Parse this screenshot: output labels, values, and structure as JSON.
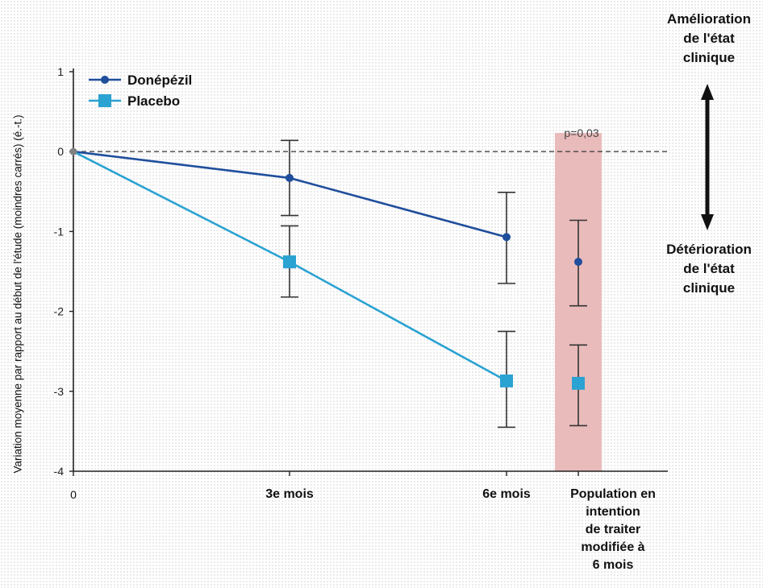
{
  "chart_data": {
    "type": "line",
    "ylabel": "Variation moyenne par rapport au début de l'étude (moindres carrés) (é.-t.)",
    "ylim": [
      -4,
      1
    ],
    "yticks": [
      "1",
      "0",
      "-1",
      "-2",
      "-3",
      "-4"
    ],
    "categories": [
      "0",
      "3e mois",
      "6e mois",
      "Population en intention de traiter modifiée à 6 mois"
    ],
    "category_lines": [
      [
        "0"
      ],
      [
        "3e mois"
      ],
      [
        "6e mois"
      ],
      [
        "Population en",
        "intention",
        "de traiter",
        "modifiée à",
        "6 mois"
      ]
    ],
    "reference_line": 0,
    "series": [
      {
        "name": "Donépézil",
        "color": "#1f4e9c",
        "marker": "circle",
        "values": [
          0,
          -0.33,
          -1.07,
          -1.38
        ],
        "error_low": [
          null,
          -0.8,
          -1.65,
          -1.93
        ],
        "error_high": [
          null,
          0.14,
          -0.51,
          -0.86
        ]
      },
      {
        "name": "Placebo",
        "color": "#2aa2d2",
        "marker": "square",
        "values": [
          0,
          -1.38,
          -2.87,
          -2.9
        ],
        "error_low": [
          null,
          -1.82,
          -3.45,
          -3.43
        ],
        "error_high": [
          null,
          -0.93,
          -2.25,
          -2.42
        ]
      }
    ],
    "connected_points": 3,
    "highlight": {
      "category": "Population en intention de traiter modifiée à 6 mois",
      "label": "p=0,03",
      "color": "#e8b4b4"
    },
    "legend_position": "top-left",
    "side_annotations": {
      "top": [
        "Amélioration",
        "de l'état",
        "clinique"
      ],
      "bottom": [
        "Détérioration",
        "de l'état",
        "clinique"
      ]
    }
  }
}
